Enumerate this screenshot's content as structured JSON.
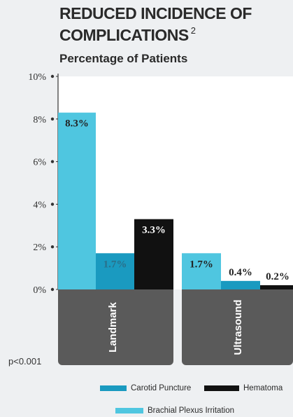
{
  "title_line1": "REDUCED INCIDENCE OF",
  "title_line2": "COMPLICATIONS",
  "title_sup": "2",
  "subtitle": "Percentage of Patients",
  "pvalue": "p<0.001",
  "colors": {
    "brachial": "#4fc6e0",
    "carotid": "#1a9ac0",
    "hematoma": "#111111",
    "panel": "#5a5a5a"
  },
  "chart_data": {
    "type": "bar",
    "categories": [
      "Landmark",
      "Ultrasound"
    ],
    "series": [
      {
        "name": "Brachial Plexus Irritation",
        "values": [
          8.3,
          1.7
        ],
        "labels": [
          "8.3%",
          "1.7%"
        ]
      },
      {
        "name": "Carotid Puncture",
        "values": [
          1.7,
          0.4
        ],
        "labels": [
          "1.7%",
          "0.4%"
        ]
      },
      {
        "name": "Hematoma",
        "values": [
          3.3,
          0.2
        ],
        "labels": [
          "3.3%",
          "0.2%"
        ]
      }
    ],
    "yticks": [
      "0%",
      "2%",
      "4%",
      "6%",
      "8%",
      "10%"
    ],
    "ytick_values": [
      0,
      2,
      4,
      6,
      8,
      10
    ],
    "ylim": [
      0,
      10
    ],
    "xlabel": "",
    "ylabel": "",
    "legend": "bottom"
  }
}
